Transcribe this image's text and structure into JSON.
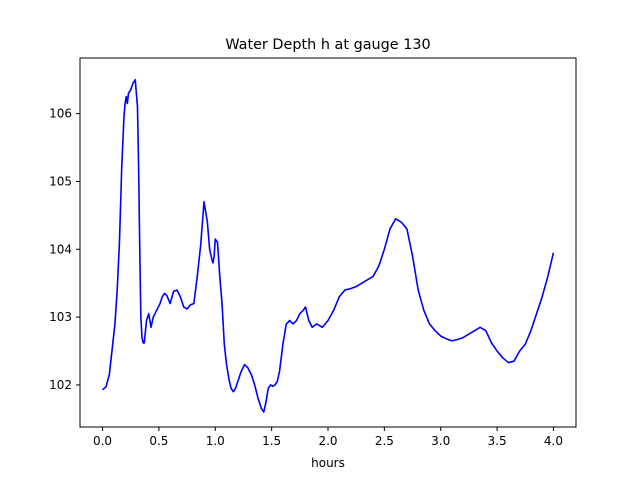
{
  "chart_data": {
    "type": "line",
    "title": "Water Depth h at gauge 130",
    "xlabel": "hours",
    "ylabel": "",
    "xlim": [
      -0.2,
      4.2
    ],
    "ylim": [
      101.38,
      106.82
    ],
    "xticks": [
      0.0,
      0.5,
      1.0,
      1.5,
      2.0,
      2.5,
      3.0,
      3.5,
      4.0
    ],
    "xtick_labels": [
      "0.0",
      "0.5",
      "1.0",
      "1.5",
      "2.0",
      "2.5",
      "3.0",
      "3.5",
      "4.0"
    ],
    "yticks": [
      102,
      103,
      104,
      105,
      106
    ],
    "ytick_labels": [
      "102",
      "103",
      "104",
      "105",
      "106"
    ],
    "grid": false,
    "series": [
      {
        "name": "",
        "color": "#0000ff",
        "x": [
          0.0,
          0.03,
          0.06,
          0.09,
          0.11,
          0.13,
          0.15,
          0.17,
          0.19,
          0.2,
          0.21,
          0.22,
          0.23,
          0.25,
          0.27,
          0.29,
          0.31,
          0.32,
          0.33,
          0.34,
          0.35,
          0.36,
          0.37,
          0.39,
          0.41,
          0.43,
          0.45,
          0.48,
          0.51,
          0.53,
          0.55,
          0.57,
          0.6,
          0.63,
          0.66,
          0.69,
          0.72,
          0.75,
          0.78,
          0.81,
          0.84,
          0.87,
          0.9,
          0.93,
          0.95,
          0.97,
          0.98,
          0.99,
          1.0,
          1.02,
          1.04,
          1.06,
          1.08,
          1.1,
          1.12,
          1.14,
          1.16,
          1.18,
          1.2,
          1.23,
          1.26,
          1.29,
          1.32,
          1.35,
          1.38,
          1.41,
          1.43,
          1.45,
          1.47,
          1.49,
          1.51,
          1.53,
          1.55,
          1.57,
          1.6,
          1.63,
          1.66,
          1.69,
          1.72,
          1.75,
          1.78,
          1.8,
          1.83,
          1.86,
          1.9,
          1.95,
          2.0,
          2.05,
          2.1,
          2.15,
          2.2,
          2.25,
          2.3,
          2.35,
          2.4,
          2.45,
          2.5,
          2.55,
          2.6,
          2.65,
          2.7,
          2.75,
          2.8,
          2.85,
          2.9,
          2.95,
          3.0,
          3.05,
          3.1,
          3.15,
          3.2,
          3.25,
          3.3,
          3.35,
          3.4,
          3.45,
          3.5,
          3.55,
          3.6,
          3.65,
          3.7,
          3.75,
          3.8,
          3.85,
          3.9,
          3.95,
          4.0
        ],
        "values": [
          101.93,
          101.97,
          102.15,
          102.6,
          102.9,
          103.4,
          104.1,
          105.2,
          105.95,
          106.15,
          106.25,
          106.15,
          106.3,
          106.35,
          106.45,
          106.5,
          106.1,
          105.2,
          104.0,
          103.0,
          102.7,
          102.62,
          102.62,
          102.95,
          103.05,
          102.85,
          103.0,
          103.1,
          103.2,
          103.3,
          103.35,
          103.32,
          103.2,
          103.38,
          103.4,
          103.3,
          103.15,
          103.12,
          103.18,
          103.2,
          103.6,
          104.05,
          104.7,
          104.4,
          104.0,
          103.85,
          103.8,
          103.9,
          104.15,
          104.1,
          103.6,
          103.2,
          102.6,
          102.3,
          102.1,
          101.95,
          101.9,
          101.95,
          102.05,
          102.2,
          102.3,
          102.25,
          102.15,
          102.0,
          101.8,
          101.65,
          101.6,
          101.75,
          101.95,
          102.0,
          101.98,
          102.0,
          102.05,
          102.2,
          102.6,
          102.9,
          102.95,
          102.9,
          102.95,
          103.05,
          103.1,
          103.15,
          102.95,
          102.85,
          102.9,
          102.85,
          102.95,
          103.1,
          103.3,
          103.4,
          103.42,
          103.45,
          103.5,
          103.55,
          103.6,
          103.75,
          104.0,
          104.3,
          104.45,
          104.4,
          104.3,
          103.9,
          103.4,
          103.1,
          102.9,
          102.8,
          102.72,
          102.68,
          102.65,
          102.67,
          102.7,
          102.75,
          102.8,
          102.85,
          102.8,
          102.62,
          102.5,
          102.4,
          102.33,
          102.35,
          102.5,
          102.6,
          102.8,
          103.05,
          103.3,
          103.6,
          103.95
        ]
      }
    ]
  }
}
